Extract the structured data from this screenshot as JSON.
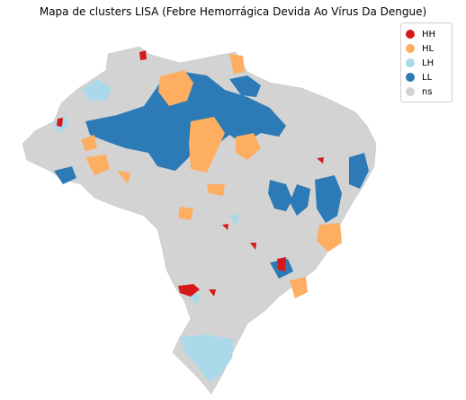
{
  "title": "Mapa de clusters LISA (Febre Hemorrágica Devida Ao Vírus Da Dengue)",
  "legend": [
    {
      "label": "HH",
      "color": "#d7191c"
    },
    {
      "label": "HL",
      "color": "#fdae61"
    },
    {
      "label": "LH",
      "color": "#abd9e9"
    },
    {
      "label": "LL",
      "color": "#2c7bb6"
    },
    {
      "label": "ns",
      "color": "#d3d3d3"
    }
  ]
}
